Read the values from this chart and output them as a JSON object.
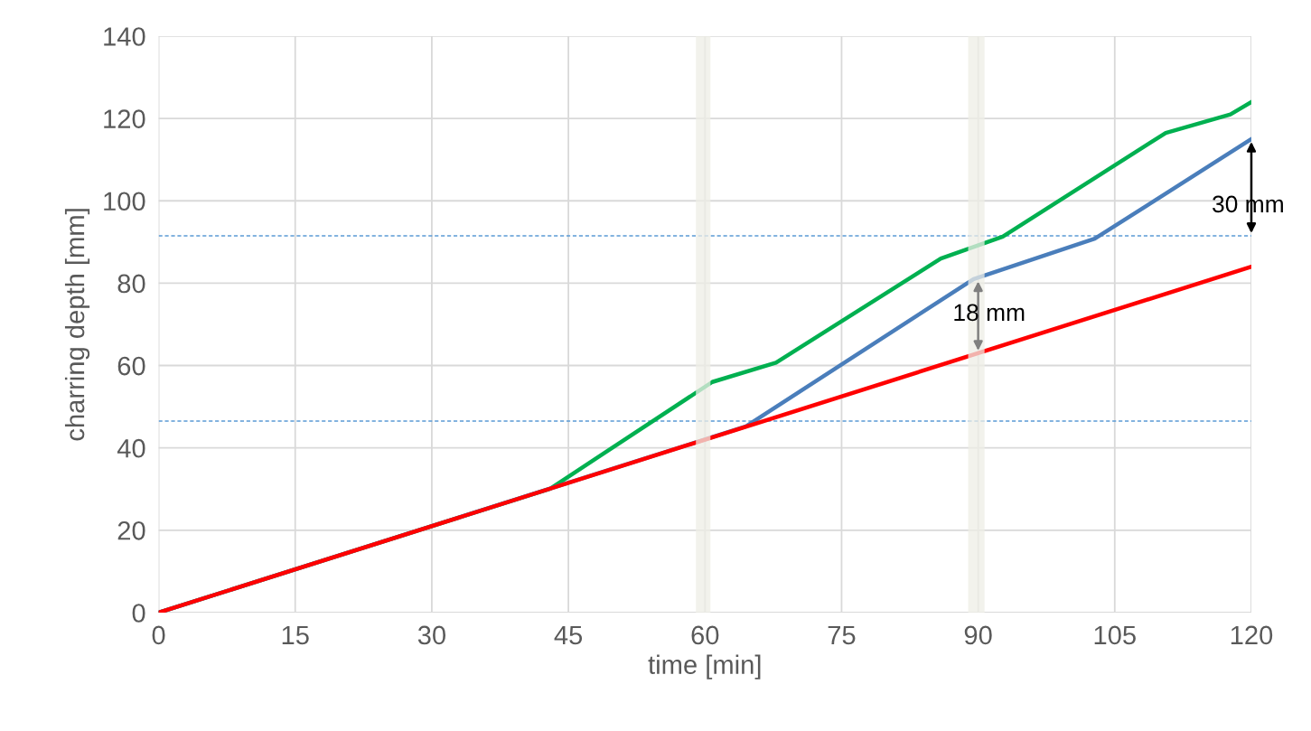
{
  "chart_data": {
    "type": "line",
    "xlabel": "time [min]",
    "ylabel": "charring depth [mm]",
    "xlim": [
      0,
      120
    ],
    "ylim": [
      0,
      140
    ],
    "xticks": [
      0,
      15,
      30,
      45,
      60,
      75,
      90,
      105,
      120
    ],
    "yticks": [
      0,
      20,
      40,
      60,
      80,
      100,
      120,
      140
    ],
    "grid": true,
    "marker": "none",
    "line_style": "solid",
    "series": [
      {
        "color": "#00b050",
        "x": [
          0,
          43,
          60.8,
          67.8,
          85.9,
          92.7,
          110.6,
          117.7,
          120
        ],
        "values": [
          0,
          30.1,
          56,
          60.7,
          86,
          91.3,
          116.5,
          121,
          124
        ]
      },
      {
        "color": "#4a7ebb",
        "x": [
          0,
          64.5,
          89.5,
          102.8,
          120
        ],
        "values": [
          0,
          45.2,
          81,
          90.8,
          115
        ]
      },
      {
        "color": "#ff0000",
        "x": [
          0,
          120
        ],
        "values": [
          0,
          84
        ]
      }
    ],
    "ref_lines": [
      {
        "axis": "y",
        "value": 91.5,
        "color": "#5b9bd5",
        "line_style": "dashed"
      },
      {
        "axis": "y",
        "value": 46.5,
        "color": "#5b9bd5",
        "line_style": "dashed"
      }
    ],
    "bands": [
      {
        "axis": "x",
        "from": 59,
        "to": 60.6,
        "color": "#eeede6"
      },
      {
        "axis": "x",
        "from": 88.9,
        "to": 90.7,
        "color": "#eeede6"
      }
    ],
    "annotations": [
      "30 mm",
      "18 mm"
    ]
  }
}
